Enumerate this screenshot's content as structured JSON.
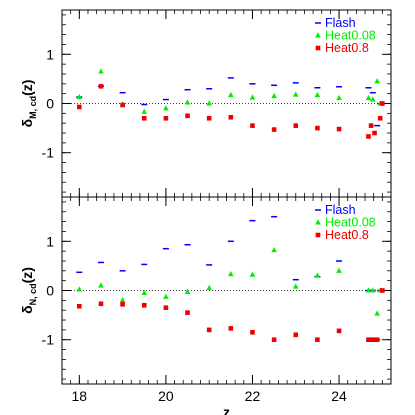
{
  "chart_data": [
    {
      "type": "scatter",
      "panel": "top",
      "ylabel_main": "δ",
      "ylabel_sub": "M, cd",
      "ylabel_arg": "(z)",
      "xlabel": "",
      "xlim": [
        17.6,
        25.2
      ],
      "ylim": [
        -1.9,
        1.9
      ],
      "yticks": [
        -1,
        0,
        1
      ],
      "xticks": [],
      "zero_line": 0,
      "legend_position": "top-right",
      "series": [
        {
          "name": "Flash",
          "marker": "dash",
          "color": "#0000ff",
          "points": [
            [
              18.0,
              0.13
            ],
            [
              18.5,
              0.35
            ],
            [
              19.0,
              0.22
            ],
            [
              19.5,
              -0.02
            ],
            [
              20.0,
              0.08
            ],
            [
              20.5,
              0.28
            ],
            [
              21.0,
              0.3
            ],
            [
              21.5,
              0.52
            ],
            [
              22.0,
              0.4
            ],
            [
              22.5,
              0.37
            ],
            [
              23.0,
              0.42
            ],
            [
              23.5,
              0.32
            ],
            [
              24.0,
              0.34
            ],
            [
              24.68,
              0.32
            ],
            [
              24.78,
              0.22
            ],
            [
              24.88,
              -0.45
            ],
            [
              24.95,
              0.0
            ]
          ]
        },
        {
          "name": "Heat0.08",
          "marker": "triangle",
          "color": "#00ee00",
          "points": [
            [
              18.0,
              0.13
            ],
            [
              18.5,
              0.65
            ],
            [
              19.0,
              -0.02
            ],
            [
              19.5,
              -0.17
            ],
            [
              20.0,
              -0.1
            ],
            [
              20.5,
              0.02
            ],
            [
              21.0,
              0.0
            ],
            [
              21.5,
              0.17
            ],
            [
              22.0,
              0.12
            ],
            [
              22.5,
              0.15
            ],
            [
              23.0,
              0.18
            ],
            [
              23.5,
              0.17
            ],
            [
              24.0,
              0.11
            ],
            [
              24.68,
              0.11
            ],
            [
              24.78,
              0.08
            ],
            [
              24.88,
              0.45
            ],
            [
              24.95,
              0.0
            ]
          ]
        },
        {
          "name": "Heat0.8",
          "marker": "square",
          "color": "#ee0000",
          "points": [
            [
              18.0,
              -0.07
            ],
            [
              18.5,
              0.35
            ],
            [
              19.0,
              -0.03
            ],
            [
              19.5,
              -0.3
            ],
            [
              20.0,
              -0.3
            ],
            [
              20.5,
              -0.25
            ],
            [
              21.0,
              -0.3
            ],
            [
              21.5,
              -0.28
            ],
            [
              22.0,
              -0.45
            ],
            [
              22.5,
              -0.53
            ],
            [
              23.0,
              -0.45
            ],
            [
              23.5,
              -0.5
            ],
            [
              24.0,
              -0.52
            ],
            [
              24.68,
              -0.67
            ],
            [
              24.74,
              -0.45
            ],
            [
              24.82,
              -0.6
            ],
            [
              24.95,
              -0.3
            ],
            [
              25.0,
              0.0
            ]
          ]
        }
      ]
    },
    {
      "type": "scatter",
      "panel": "bottom",
      "ylabel_main": "δ",
      "ylabel_sub": "N, cd",
      "ylabel_arg": "(z)",
      "xlabel": "z",
      "xlim": [
        17.6,
        25.2
      ],
      "ylim": [
        -1.9,
        1.9
      ],
      "yticks": [
        -1,
        0,
        1
      ],
      "xticks": [
        18,
        20,
        22,
        24
      ],
      "zero_line": 0,
      "legend_position": "top-right",
      "series": [
        {
          "name": "Flash",
          "marker": "dash",
          "color": "#0000ff",
          "points": [
            [
              18.0,
              0.37
            ],
            [
              18.5,
              0.57
            ],
            [
              19.0,
              0.4
            ],
            [
              19.5,
              0.53
            ],
            [
              20.0,
              0.85
            ],
            [
              20.5,
              0.93
            ],
            [
              21.0,
              0.52
            ],
            [
              21.5,
              1.0
            ],
            [
              22.0,
              1.42
            ],
            [
              22.5,
              1.5
            ],
            [
              23.0,
              0.22
            ],
            [
              23.5,
              0.28
            ],
            [
              24.0,
              0.6
            ],
            [
              24.68,
              0.0
            ],
            [
              24.78,
              0.0
            ],
            [
              24.88,
              -1.0
            ],
            [
              24.95,
              0.0
            ]
          ]
        },
        {
          "name": "Heat0.08",
          "marker": "triangle",
          "color": "#00ee00",
          "points": [
            [
              18.0,
              0.02
            ],
            [
              18.5,
              0.1
            ],
            [
              19.0,
              -0.2
            ],
            [
              19.5,
              -0.05
            ],
            [
              20.0,
              -0.13
            ],
            [
              20.5,
              -0.03
            ],
            [
              21.0,
              0.05
            ],
            [
              21.5,
              0.33
            ],
            [
              22.0,
              0.32
            ],
            [
              22.5,
              0.82
            ],
            [
              23.0,
              0.08
            ],
            [
              23.5,
              0.3
            ],
            [
              24.0,
              0.4
            ],
            [
              24.68,
              0.0
            ],
            [
              24.78,
              0.0
            ],
            [
              24.88,
              -0.47
            ],
            [
              24.95,
              0.0
            ]
          ]
        },
        {
          "name": "Heat0.8",
          "marker": "square",
          "color": "#ee0000",
          "points": [
            [
              18.0,
              -0.32
            ],
            [
              18.5,
              -0.27
            ],
            [
              19.0,
              -0.28
            ],
            [
              19.5,
              -0.3
            ],
            [
              20.0,
              -0.35
            ],
            [
              20.5,
              -0.45
            ],
            [
              21.0,
              -0.8
            ],
            [
              21.5,
              -0.77
            ],
            [
              22.0,
              -0.85
            ],
            [
              22.5,
              -1.0
            ],
            [
              23.0,
              -0.9
            ],
            [
              23.5,
              -1.0
            ],
            [
              24.0,
              -0.82
            ],
            [
              24.68,
              -1.0
            ],
            [
              24.78,
              -1.0
            ],
            [
              24.88,
              -1.0
            ],
            [
              25.0,
              0.0
            ]
          ]
        }
      ]
    }
  ]
}
